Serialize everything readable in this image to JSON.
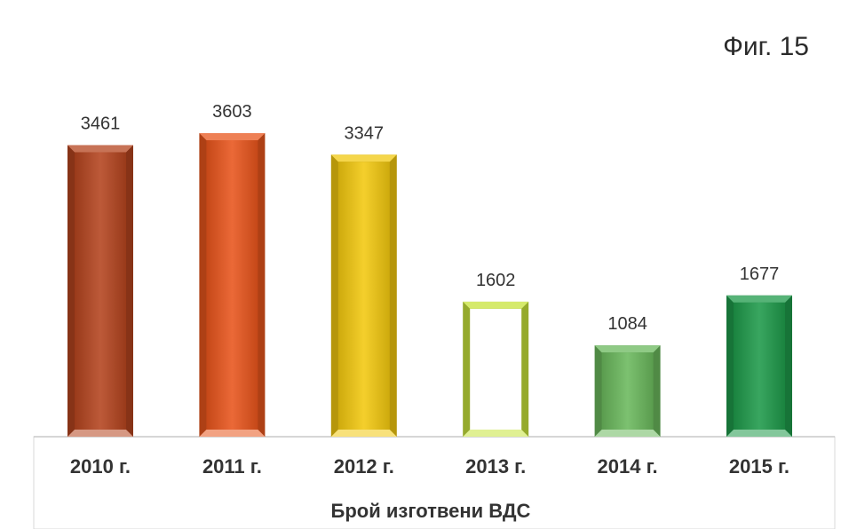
{
  "figure_label": "Фиг. 15",
  "chart_data": {
    "type": "bar",
    "title": "",
    "xlabel": "Брой изготвени ВДС",
    "ylabel": "",
    "categories": [
      "2010 г.",
      "2011 г.",
      "2012 г.",
      "2013 г.",
      "2014 г.",
      "2015 г."
    ],
    "values": [
      3461,
      3603,
      3347,
      1602,
      1084,
      1677
    ],
    "data_labels": [
      "3461",
      "3603",
      "3347",
      "1602",
      "1084",
      "1677"
    ],
    "colors": [
      "#b4441e",
      "#e8551c",
      "#f2c80f",
      "#c7e33a",
      "#6ab85c",
      "#1e9a4a"
    ],
    "grid": false,
    "legend": "none",
    "ylim": [
      0,
      3603
    ]
  }
}
